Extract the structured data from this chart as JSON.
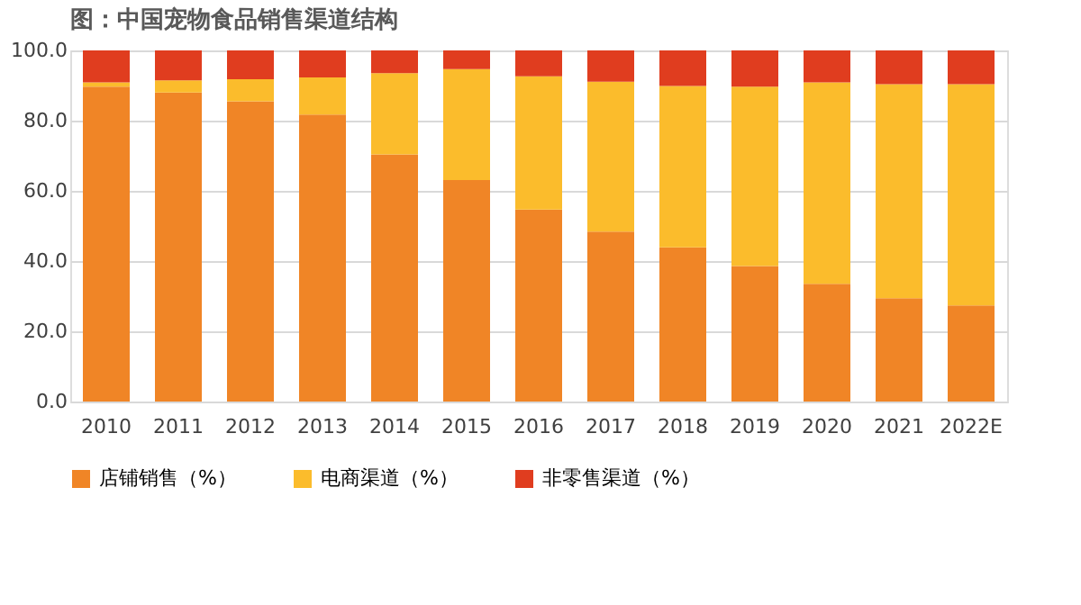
{
  "chart_data": {
    "type": "bar",
    "stacked": true,
    "title": "图：中国宠物食品销售渠道结构",
    "categories": [
      "2010",
      "2011",
      "2012",
      "2013",
      "2014",
      "2015",
      "2016",
      "2017",
      "2018",
      "2019",
      "2020",
      "2021",
      "2022E"
    ],
    "series": [
      {
        "name": "店铺销售（%）",
        "color": "#f08526",
        "values": [
          89.7,
          88.0,
          85.5,
          81.7,
          70.4,
          63.1,
          54.7,
          48.4,
          43.9,
          38.6,
          33.5,
          29.4,
          27.4
        ]
      },
      {
        "name": "电商渠道（%）",
        "color": "#fbbc2c",
        "values": [
          1.2,
          3.5,
          6.3,
          10.6,
          23.1,
          31.6,
          37.9,
          42.7,
          46.0,
          51.1,
          57.4,
          61.0,
          63.0
        ]
      },
      {
        "name": "非零售渠道（%）",
        "color": "#e03d1f",
        "values": [
          9.1,
          8.5,
          8.2,
          7.7,
          6.5,
          5.3,
          7.4,
          8.9,
          10.1,
          10.3,
          9.1,
          9.6,
          9.6
        ]
      }
    ],
    "ylim": [
      0,
      100
    ],
    "yticks": [
      {
        "value": 0,
        "label": "0.0"
      },
      {
        "value": 20,
        "label": "20.0"
      },
      {
        "value": 40,
        "label": "40.0"
      },
      {
        "value": 60,
        "label": "60.0"
      },
      {
        "value": 80,
        "label": "80.0"
      },
      {
        "value": 100,
        "label": "100.0"
      }
    ],
    "grid": "y",
    "legend": "bottom"
  }
}
